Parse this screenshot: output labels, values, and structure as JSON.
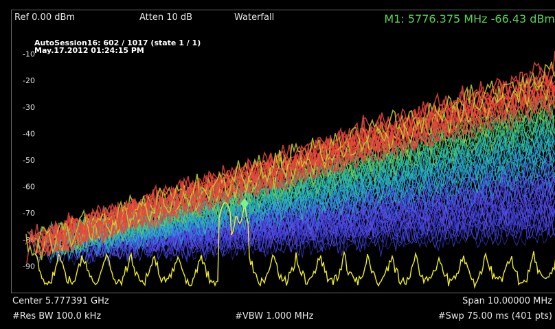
{
  "header": {
    "ref_level": "Ref 0.00 dBm",
    "attenuation": "Atten 10 dB",
    "display_mode": "Waterfall",
    "marker_readout": "M1:  5776.375 MHz  -66.43 dBm"
  },
  "session": {
    "line1": "AutoSession16: 602 / 1017 (state 1 / 1)",
    "line2": "May.17.2012 01:24:15 PM"
  },
  "footer": {
    "center": "Center 5.777391 GHz",
    "span": "Span 10.00000 MHz",
    "res_bw": "#Res BW 100.0 kHz",
    "vbw": "#VBW 1.000 MHz",
    "sweep": "#Swp 75.00 ms (401 pts)"
  },
  "colors": {
    "marker_text": "#56d456",
    "live_trace": "#f2f21a",
    "hot_trace": "#e8463c",
    "marker_diamond": "#7cf28a"
  },
  "chart_data": {
    "type": "line",
    "y_ticks": [
      "-10",
      "-20",
      "-30",
      "-40",
      "-50",
      "-60",
      "-70",
      "-80",
      "-90"
    ],
    "ylim": [
      -100,
      0
    ],
    "marker": {
      "label": "1",
      "freq_mhz": 5776.375,
      "level_dbm": -66.43
    }
  }
}
